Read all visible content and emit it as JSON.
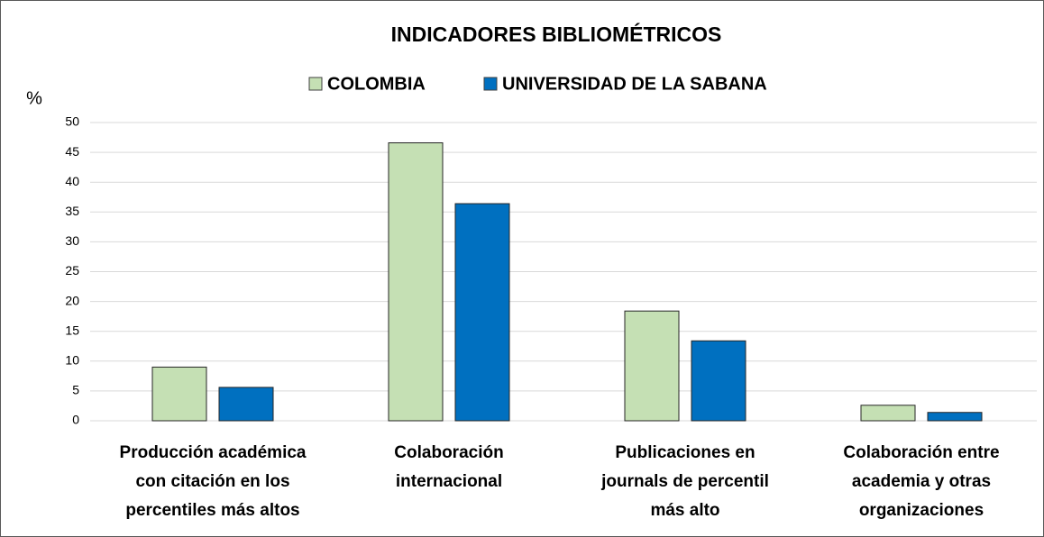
{
  "chart_data": {
    "type": "bar",
    "title": "INDICADORES BIBLIOMÉTRICOS",
    "y_label": "%",
    "categories": [
      [
        "Producción académica",
        "con citación en los",
        "percentiles más altos"
      ],
      [
        "Colaboración",
        "internacional"
      ],
      [
        "Publicaciones en",
        "journals de percentil",
        "más alto"
      ],
      [
        "Colaboración entre",
        "academia y otras",
        "organizaciones"
      ]
    ],
    "series": [
      {
        "name": "COLOMBIA",
        "color": "#c5e0b4",
        "values": [
          9,
          46.6,
          18.4,
          2.6
        ]
      },
      {
        "name": "UNIVERSIDAD DE LA SABANA",
        "color": "#0070c0",
        "values": [
          5.6,
          36.4,
          13.4,
          1.4
        ]
      }
    ],
    "ylim": [
      0,
      50
    ],
    "yticks": [
      0,
      5,
      10,
      15,
      20,
      25,
      30,
      35,
      40,
      45,
      50
    ],
    "grid": true,
    "legend": "top"
  }
}
